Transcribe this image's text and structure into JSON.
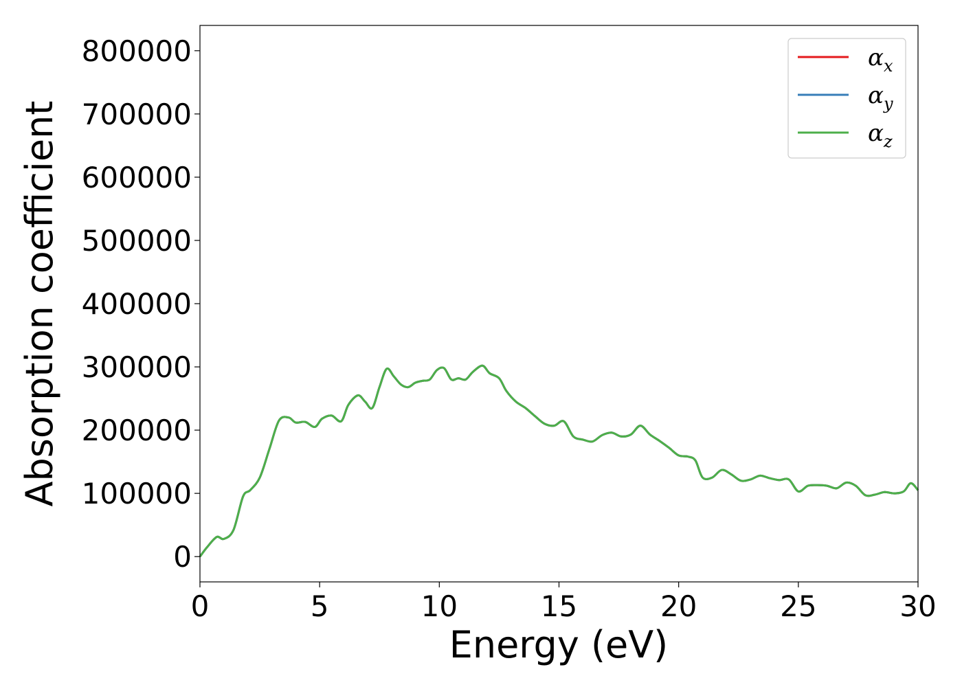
{
  "chart_data": {
    "type": "line",
    "xlabel": "Energy (eV)",
    "ylabel": "Absorption coefficient",
    "xlim": [
      0,
      30
    ],
    "ylim": [
      -40000,
      840000
    ],
    "xticks": [
      0,
      5,
      10,
      15,
      20,
      25,
      30
    ],
    "yticks": [
      0,
      100000,
      200000,
      300000,
      400000,
      500000,
      600000,
      700000,
      800000
    ],
    "grid": false,
    "legend_position": "top-right",
    "x": [
      0,
      0.3,
      0.7,
      1.0,
      1.4,
      1.8,
      2.1,
      2.5,
      2.9,
      3.3,
      3.7,
      4.0,
      4.4,
      4.8,
      5.1,
      5.5,
      5.9,
      6.2,
      6.6,
      6.9,
      7.2,
      7.5,
      7.8,
      8.1,
      8.4,
      8.7,
      9.0,
      9.3,
      9.6,
      9.9,
      10.2,
      10.5,
      10.8,
      11.1,
      11.4,
      11.8,
      12.1,
      12.5,
      12.8,
      13.2,
      13.6,
      14.0,
      14.4,
      14.8,
      15.2,
      15.6,
      16.0,
      16.4,
      16.8,
      17.2,
      17.6,
      18.0,
      18.4,
      18.8,
      19.2,
      19.6,
      20.0,
      20.4,
      20.7,
      21.0,
      21.4,
      21.8,
      22.2,
      22.6,
      23.0,
      23.4,
      23.8,
      24.2,
      24.6,
      25.0,
      25.4,
      25.8,
      26.2,
      26.6,
      27.0,
      27.4,
      27.8,
      28.2,
      28.6,
      29.0,
      29.4,
      29.7,
      30.0
    ],
    "series": [
      {
        "name": "αx",
        "color": "#e41a1c",
        "values": [
          0,
          15000,
          31000,
          28000,
          42000,
          95000,
          105000,
          125000,
          170000,
          215000,
          220000,
          212000,
          213000,
          205000,
          218000,
          223000,
          214000,
          240000,
          255000,
          245000,
          235000,
          268000,
          297000,
          285000,
          272000,
          268000,
          275000,
          278000,
          280000,
          295000,
          298000,
          280000,
          282000,
          280000,
          292000,
          302000,
          290000,
          282000,
          262000,
          245000,
          235000,
          222000,
          210000,
          207000,
          214000,
          190000,
          185000,
          182000,
          192000,
          196000,
          190000,
          193000,
          207000,
          193000,
          183000,
          172000,
          160000,
          158000,
          152000,
          125000,
          125000,
          137000,
          130000,
          120000,
          122000,
          128000,
          124000,
          121000,
          122000,
          103000,
          112000,
          113000,
          112000,
          108000,
          117000,
          112000,
          97000,
          98000,
          102000,
          100000,
          103000,
          116000,
          105000
        ]
      },
      {
        "name": "αy",
        "color": "#377eb8",
        "values": [
          0,
          15000,
          31000,
          28000,
          42000,
          95000,
          105000,
          125000,
          170000,
          215000,
          220000,
          212000,
          213000,
          205000,
          218000,
          223000,
          214000,
          240000,
          255000,
          245000,
          235000,
          268000,
          297000,
          285000,
          272000,
          268000,
          275000,
          278000,
          280000,
          295000,
          298000,
          280000,
          282000,
          280000,
          292000,
          302000,
          290000,
          282000,
          262000,
          245000,
          235000,
          222000,
          210000,
          207000,
          214000,
          190000,
          185000,
          182000,
          192000,
          196000,
          190000,
          193000,
          207000,
          193000,
          183000,
          172000,
          160000,
          158000,
          152000,
          125000,
          125000,
          137000,
          130000,
          120000,
          122000,
          128000,
          124000,
          121000,
          122000,
          103000,
          112000,
          113000,
          112000,
          108000,
          117000,
          112000,
          97000,
          98000,
          102000,
          100000,
          103000,
          116000,
          105000
        ]
      },
      {
        "name": "αz",
        "color": "#4daf4a",
        "values": [
          0,
          15000,
          31000,
          28000,
          42000,
          95000,
          105000,
          125000,
          170000,
          215000,
          220000,
          212000,
          213000,
          205000,
          218000,
          223000,
          214000,
          240000,
          255000,
          245000,
          235000,
          268000,
          297000,
          285000,
          272000,
          268000,
          275000,
          278000,
          280000,
          295000,
          298000,
          280000,
          282000,
          280000,
          292000,
          302000,
          290000,
          282000,
          262000,
          245000,
          235000,
          222000,
          210000,
          207000,
          214000,
          190000,
          185000,
          182000,
          192000,
          196000,
          190000,
          193000,
          207000,
          193000,
          183000,
          172000,
          160000,
          158000,
          152000,
          125000,
          125000,
          137000,
          130000,
          120000,
          122000,
          128000,
          124000,
          121000,
          122000,
          103000,
          112000,
          113000,
          112000,
          108000,
          117000,
          112000,
          97000,
          98000,
          102000,
          100000,
          103000,
          116000,
          105000
        ]
      }
    ],
    "legend": [
      {
        "symbol": "α",
        "subscript": "x",
        "color": "#e41a1c"
      },
      {
        "symbol": "α",
        "subscript": "y",
        "color": "#377eb8"
      },
      {
        "symbol": "α",
        "subscript": "z",
        "color": "#4daf4a"
      }
    ]
  }
}
